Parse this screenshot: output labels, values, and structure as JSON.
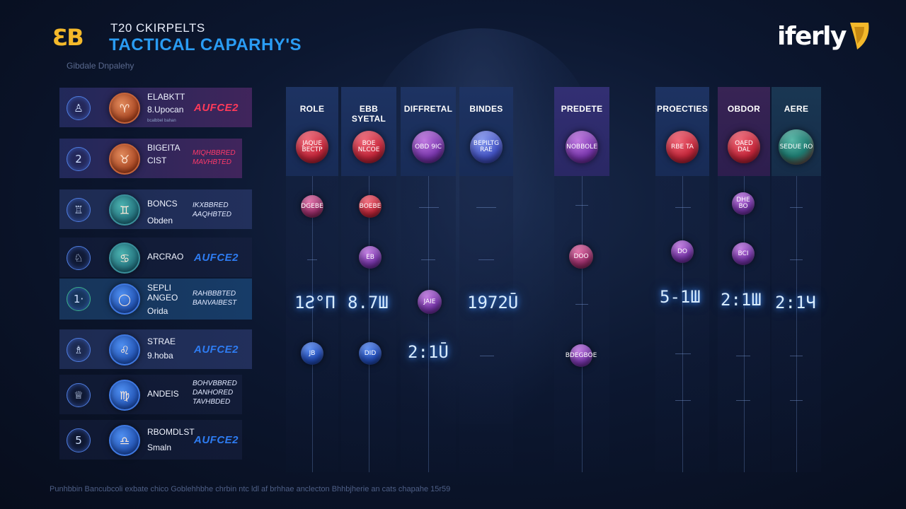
{
  "header": {
    "logo_text": "ƐB",
    "top_line": "T20 CKIRPELTS",
    "title": "TACTICAL CAPARHY'S",
    "subtitle": "Gibdale Dnpalehy",
    "brand": "iferly"
  },
  "players": [
    {
      "icon": "♙",
      "lines": [
        "ELABKTT",
        "8.Upocan"
      ],
      "tiny": "bcalbbel bahan",
      "tag": "AUFCE2",
      "tag_color": "red"
    },
    {
      "icon": "2",
      "lines": [
        "BIGEITA",
        "CIST"
      ],
      "tagpair": [
        "MIQHBBRED",
        "MAVHBTED"
      ],
      "tag_color": "red"
    },
    {
      "icon": "♖",
      "lines": [
        "BONCS",
        "Obden"
      ],
      "tagpair": [
        "IKXBBRED",
        "AAQHBTED"
      ],
      "tag_color": "white"
    },
    {
      "icon": "♘",
      "lines": [
        "ARCRAO"
      ],
      "tag": "AUFCE2",
      "tag_color": "blue"
    },
    {
      "icon": "1·",
      "lines": [
        "SEPLI",
        "ANGEO",
        "Orida"
      ],
      "tagpair": [
        "RAHBBBTED",
        "BANVAIBEST"
      ],
      "tag_color": "white"
    },
    {
      "icon": "♗",
      "lines": [
        "STRAE",
        "9.hoba"
      ],
      "tag": "AUFCE2",
      "tag_color": "blue"
    },
    {
      "icon": "♕",
      "lines": [
        "ANDEIS"
      ],
      "tagpair": [
        "BOHVBBRED",
        "DANHORED",
        "TAVHBDED"
      ],
      "tag_color": "white"
    },
    {
      "icon": "5",
      "lines": [
        "RBOMDLST",
        "Smaln"
      ],
      "tag": "AUFCE2",
      "tag_color": "blue"
    }
  ],
  "columns": [
    {
      "label": "ROLE",
      "head_ball": {
        "color": "red",
        "text": "JAQUE BECTP"
      }
    },
    {
      "label": "EBB SYETAL",
      "head_ball": {
        "color": "red",
        "text": "BOE NLCOE"
      }
    },
    {
      "label": "DIFFRETAL",
      "head_ball": {
        "color": "purple",
        "text": "OBD 9IC"
      }
    },
    {
      "label": "BINDES",
      "head_ball": {
        "color": "blue",
        "text": "BEPILTG RAE"
      }
    },
    {
      "label": "PREDETE",
      "head_ball": {
        "color": "purple",
        "text": "NOBBOLE"
      }
    },
    {
      "label": "PROECTIES",
      "head_ball": {
        "color": "red",
        "text": "RBE TA"
      }
    },
    {
      "label": "OBDOR",
      "head_ball": {
        "color": "red",
        "text": "OAED DAL"
      }
    },
    {
      "label": "AERE",
      "head_ball": {
        "color": "teal",
        "text": "SEDUE RO"
      }
    }
  ],
  "cells": {
    "r1": {
      "c1": "DGEBE",
      "c2": "BOEBE",
      "c7": "DHE BO"
    },
    "r2": {
      "c2": "EB",
      "c5": "DOO",
      "c6": "DO",
      "c7": "BCI"
    },
    "r3": {
      "c3": "JAIE"
    },
    "r4": {
      "c1": "JB",
      "c2": "DID",
      "c5": "BDEGBOE"
    }
  },
  "stats": {
    "role": "1Ƨ°П",
    "ebb": "8.7Ш",
    "binde": "1972Ū",
    "diff": "2:1Ū",
    "proe": "5-1Ш",
    "obdor": "2:1Ш",
    "aere": "2:1Ч"
  },
  "footer": "Punhbbin   Bancubcoli exbate chico   Goblehhbhe chrbin ntc ldl af brhhae anclecton   Bhhbjherie an cats chapahe 15r59"
}
